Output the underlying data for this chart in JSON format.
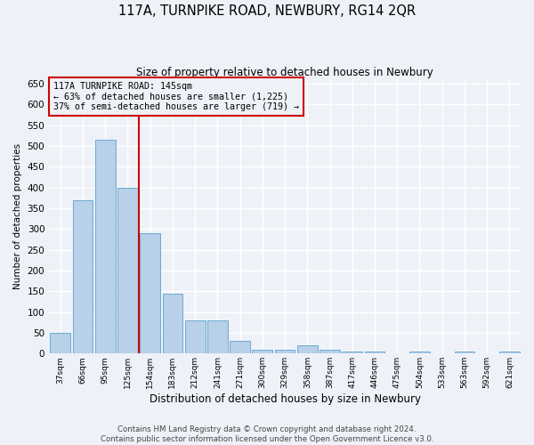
{
  "title": "117A, TURNPIKE ROAD, NEWBURY, RG14 2QR",
  "subtitle": "Size of property relative to detached houses in Newbury",
  "xlabel": "Distribution of detached houses by size in Newbury",
  "ylabel": "Number of detached properties",
  "categories": [
    "37sqm",
    "66sqm",
    "95sqm",
    "125sqm",
    "154sqm",
    "183sqm",
    "212sqm",
    "241sqm",
    "271sqm",
    "300sqm",
    "329sqm",
    "358sqm",
    "387sqm",
    "417sqm",
    "446sqm",
    "475sqm",
    "504sqm",
    "533sqm",
    "563sqm",
    "592sqm",
    "621sqm"
  ],
  "values": [
    50,
    370,
    515,
    400,
    290,
    145,
    80,
    80,
    30,
    10,
    10,
    20,
    10,
    5,
    5,
    0,
    5,
    0,
    5,
    0,
    5
  ],
  "bar_color": "#b8d0e8",
  "bar_edge_color": "#6aaad4",
  "ref_line_x": 3.5,
  "annotation_line0": "117A TURNPIKE ROAD: 145sqm",
  "annotation_line1": "← 63% of detached houses are smaller (1,225)",
  "annotation_line2": "37% of semi-detached houses are larger (719) →",
  "annotation_box_color": "#cc0000",
  "ylim": [
    0,
    660
  ],
  "yticks": [
    0,
    50,
    100,
    150,
    200,
    250,
    300,
    350,
    400,
    450,
    500,
    550,
    600,
    650
  ],
  "bg_color": "#eef2f8",
  "grid_color": "#ffffff",
  "footnote1": "Contains HM Land Registry data © Crown copyright and database right 2024.",
  "footnote2": "Contains public sector information licensed under the Open Government Licence v3.0."
}
